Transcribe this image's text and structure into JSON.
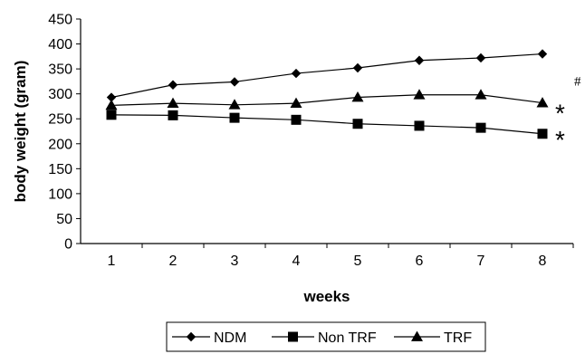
{
  "chart_data": {
    "type": "line",
    "title": "",
    "xlabel": "weeks",
    "ylabel": "body weight (gram)",
    "categories": [
      "1",
      "2",
      "3",
      "4",
      "5",
      "6",
      "7",
      "8"
    ],
    "ylim": [
      0,
      450
    ],
    "yticks": [
      "0",
      "50",
      "100",
      "150",
      "200",
      "250",
      "300",
      "350",
      "400",
      "450"
    ],
    "grid": false,
    "legend_position": "bottom",
    "series": [
      {
        "name": "NDM",
        "marker": "diamond",
        "values": [
          293,
          318,
          324,
          341,
          352,
          367,
          372,
          380
        ]
      },
      {
        "name": "Non TRF",
        "marker": "square",
        "values": [
          258,
          257,
          252,
          248,
          240,
          236,
          232,
          220
        ]
      },
      {
        "name": "TRF",
        "marker": "triangle",
        "values": [
          277,
          281,
          278,
          281,
          293,
          298,
          298,
          282
        ]
      }
    ],
    "annotations": [
      {
        "text": "*",
        "near_series": "TRF"
      },
      {
        "text": "#",
        "near_series": "TRF"
      },
      {
        "text": "*",
        "near_series": "Non TRF"
      }
    ],
    "colors": {
      "line": "#000000",
      "marker": "#000000",
      "background": "#ffffff"
    }
  }
}
